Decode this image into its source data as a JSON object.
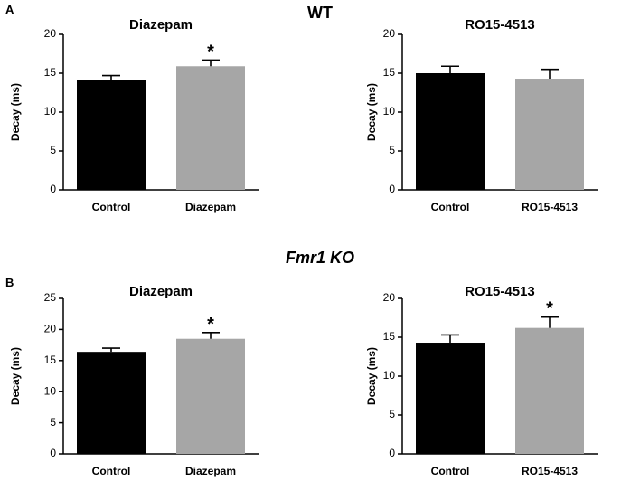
{
  "figure": {
    "panel_a_letter": "A",
    "panel_b_letter": "B",
    "wt_title": "WT",
    "ko_title_gene": "Fmr1",
    "ko_title_suffix": " KO"
  },
  "colors": {
    "control_bar": "#000000",
    "treatment_bar": "#a6a6a6"
  },
  "chart_data": [
    {
      "type": "bar",
      "title": "Diazepam",
      "categories": [
        "Control",
        "Diazepam"
      ],
      "values": [
        14.1,
        15.9
      ],
      "errors": [
        0.6,
        0.8
      ],
      "significance": [
        "",
        "*"
      ],
      "ylabel": "Decay (ms)",
      "xlabel": "",
      "ylim": [
        0,
        20
      ],
      "yticks": [
        0,
        5,
        10,
        15,
        20
      ],
      "bar_colors": [
        "#000000",
        "#a6a6a6"
      ]
    },
    {
      "type": "bar",
      "title": "RO15-4513",
      "categories": [
        "Control",
        "RO15-4513"
      ],
      "values": [
        15.0,
        14.3
      ],
      "errors": [
        0.9,
        1.2
      ],
      "significance": [
        "",
        ""
      ],
      "ylabel": "Decay (ms)",
      "xlabel": "",
      "ylim": [
        0,
        20
      ],
      "yticks": [
        0,
        5,
        10,
        15,
        20
      ],
      "bar_colors": [
        "#000000",
        "#a6a6a6"
      ]
    },
    {
      "type": "bar",
      "title": "Diazepam",
      "categories": [
        "Control",
        "Diazepam"
      ],
      "values": [
        16.4,
        18.5
      ],
      "errors": [
        0.6,
        1.0
      ],
      "significance": [
        "",
        "*"
      ],
      "ylabel": "Decay (ms)",
      "xlabel": "",
      "ylim": [
        0,
        25
      ],
      "yticks": [
        0,
        5,
        10,
        15,
        20,
        25
      ],
      "bar_colors": [
        "#000000",
        "#a6a6a6"
      ]
    },
    {
      "type": "bar",
      "title": "RO15-4513",
      "categories": [
        "Control",
        "RO15-4513"
      ],
      "values": [
        14.3,
        16.2
      ],
      "errors": [
        1.0,
        1.4
      ],
      "significance": [
        "",
        "*"
      ],
      "ylabel": "Decay (ms)",
      "xlabel": "",
      "ylim": [
        0,
        20
      ],
      "yticks": [
        0,
        5,
        10,
        15,
        20
      ],
      "bar_colors": [
        "#000000",
        "#a6a6a6"
      ]
    }
  ]
}
